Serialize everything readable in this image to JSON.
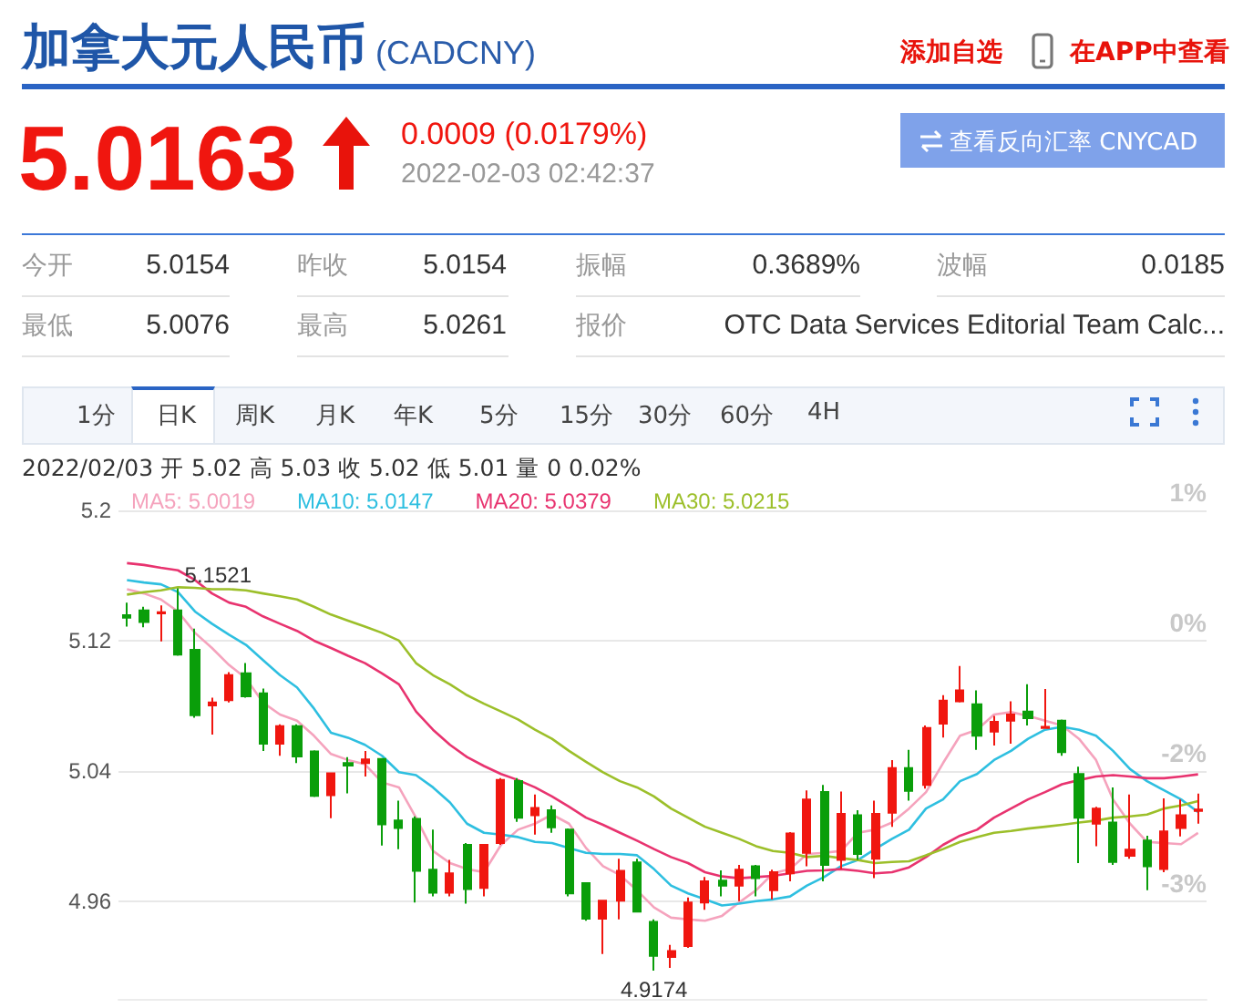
{
  "chart_data": [
    {
      "type": "other",
      "title": "加拿大元人民币",
      "subtitle": "(CADCNY)",
      "annotations": [
        "添加自选",
        "在APP中查看",
        "5.0163",
        "0.0009 (0.0179%)",
        "2022-02-03 02:42:37",
        "查看反向汇率 CNYCAD",
        "今开",
        "5.0154",
        "昨收",
        "5.0154",
        "振幅",
        "0.3689%",
        "波幅",
        "0.0185",
        "最低",
        "5.0076",
        "最高",
        "5.0261",
        "报价",
        "OTC Data Services Editorial Team Calc...",
        "1分",
        "日K",
        "周K",
        "月K",
        "年K",
        "5分",
        "15分",
        "30分",
        "60分",
        "4H",
        "2022/02/03 开 5.02 高 5.03 收 5.02 低 5.01 量 0 0.02%"
      ]
    },
    {
      "type": "candlestick",
      "categories": [
        null,
        null,
        null,
        null,
        null,
        null,
        null,
        null,
        null,
        null,
        null,
        null,
        null,
        null,
        null,
        null,
        null,
        null,
        null,
        null,
        null,
        null,
        null,
        null,
        null,
        null,
        null,
        null,
        null,
        null,
        null,
        null,
        null,
        null,
        null,
        null,
        null,
        null,
        null,
        null,
        null,
        null,
        null,
        null,
        null,
        null,
        null,
        null,
        null,
        null,
        null,
        null,
        null,
        null,
        null,
        null,
        null,
        null,
        null,
        null,
        null,
        null,
        null,
        null
      ],
      "ylim": [
        4.9,
        5.2
      ],
      "yticks": [
        4.96,
        5.04,
        5.12,
        5.2
      ],
      "grid": "y",
      "legend": "top left",
      "tick_labels": "y",
      "annotations": [
        {
          "text": "5.1521",
          "y": 5.1521
        },
        {
          "text": "4.9174",
          "y": 4.9174
        },
        "1%",
        "0%",
        "-2%",
        "-3%"
      ],
      "series": [
        {
          "type": "candlestick",
          "ohlc": [
            [
              5.1356,
              5.1434,
              5.1286,
              5.1341
            ],
            [
              5.1386,
              5.1408,
              5.1282,
              5.1315
            ],
            [
              5.1367,
              5.1416,
              5.1196,
              5.1375
            ],
            [
              5.1386,
              5.1521,
              5.1107,
              5.1114
            ],
            [
              5.1144,
              5.1274,
              5.0727,
              5.0742
            ],
            [
              5.0802,
              5.085,
              5.0623,
              5.082
            ],
            [
              5.0835,
              5.1006,
              5.082,
              5.0988
            ],
            [
              5.0999,
              5.1062,
              5.085,
              5.0858
            ],
            [
              5.0876,
              5.0906,
              5.0523,
              5.0567
            ],
            [
              5.0567,
              5.0686,
              5.0493,
              5.0675
            ],
            [
              5.0675,
              5.0686,
              5.0448,
              5.0489
            ],
            [
              5.0519,
              5.0526,
              5.024,
              5.0247
            ],
            [
              5.0251,
              5.0385,
              5.0109,
              5.0385
            ],
            [
              5.0448,
              5.0485,
              5.0262,
              5.0433
            ],
            [
              5.0448,
              5.0523,
              5.0366,
              5.0471
            ],
            [
              5.0474,
              5.0474,
              4.9942,
              5.0072
            ],
            [
              5.0095,
              5.0217,
              4.992,
              5.005
            ],
            [
              5.0106,
              5.0121,
              4.9592,
              4.9786
            ],
            [
              4.9793,
              5.0039,
              4.963,
              4.9652
            ],
            [
              4.9652,
              4.9853,
              4.963,
              4.9771
            ],
            [
              4.9946,
              4.9957,
              4.9585,
              4.9674
            ],
            [
              4.9681,
              4.9946,
              4.963,
              4.9946
            ],
            [
              4.9957,
              5.0356,
              4.9946,
              5.0344
            ],
            [
              5.0337,
              5.0356,
              5.0087,
              5.0113
            ],
            [
              5.0128,
              5.0255,
              5.0009,
              5.0173
            ],
            [
              5.0158,
              5.0188,
              5.002,
              5.0054
            ],
            [
              5.0039,
              5.0046,
              4.963,
              4.9648
            ],
            [
              4.9711,
              4.9711,
              4.948,
              4.9492
            ],
            [
              4.9492,
              4.9603,
              4.9276,
              4.9603
            ],
            [
              4.9603,
              4.986,
              4.9488,
              4.9786
            ],
            [
              4.9838,
              4.986,
              4.9536,
              4.9536
            ],
            [
              4.9473,
              4.9488,
              4.9174,
              4.9265
            ],
            [
              4.9257,
              4.9332,
              4.919,
              4.9294
            ],
            [
              4.9324,
              4.9622,
              4.9313,
              4.9592
            ],
            [
              4.9592,
              4.9748,
              4.9547,
              4.9722
            ],
            [
              4.9726,
              4.9789,
              4.963,
              4.9696
            ],
            [
              4.9696,
              4.9823,
              4.96,
              4.9793
            ],
            [
              4.9815,
              4.9823,
              4.963,
              4.9741
            ],
            [
              4.9667,
              4.9793,
              4.9611,
              4.9778
            ],
            [
              4.9771,
              5.0024,
              4.9722,
              5.0016
            ],
            [
              4.9897,
              5.0281,
              4.9815,
              5.0225
            ],
            [
              5.027,
              5.0314,
              4.9722,
              4.9823
            ],
            [
              4.9853,
              5.0273,
              4.9797,
              5.0136
            ],
            [
              5.0128,
              5.0158,
              4.9853,
              4.989
            ],
            [
              4.986,
              5.0217,
              4.9741,
              5.0136
            ],
            [
              5.0143,
              5.0467,
              5.0057,
              5.0418
            ],
            [
              5.0418,
              5.053,
              5.0217,
              5.0277
            ],
            [
              5.0314,
              5.0679,
              5.0292,
              5.0664
            ],
            [
              5.069,
              5.0865,
              5.0605,
              5.0832
            ],
            [
              5.0828,
              5.1044,
              5.082,
              5.0895
            ],
            [
              5.0809,
              5.0895,
              5.053,
              5.0616
            ],
            [
              5.0642,
              5.0738,
              5.0556,
              5.0701
            ],
            [
              5.0709,
              5.0828,
              5.0567,
              5.0746
            ],
            [
              5.0765,
              5.0932,
              5.0679,
              5.0724
            ],
            [
              5.0664,
              5.0903,
              5.0664,
              5.0671
            ],
            [
              5.0709,
              5.0716,
              5.0493,
              5.0515
            ],
            [
              5.0381,
              5.0426,
              4.9834,
              5.0113
            ],
            [
              5.0076,
              5.018,
              4.9938,
              5.0169
            ],
            [
              5.0083,
              5.0299,
              4.9823,
              4.9841
            ],
            [
              4.9879,
              5.0255,
              4.986,
              4.9916
            ],
            [
              4.9972,
              5.0002,
              4.9667,
              4.9815
            ],
            [
              4.9797,
              5.0232,
              4.9778,
              5.0028
            ],
            [
              5.005,
              5.0225,
              4.9998,
              5.0128
            ],
            [
              5.0154,
              5.0261,
              5.0076,
              5.0163
            ]
          ],
          "colors": [
            "#0a9e0a",
            "#0a9e0a",
            "#f0160f",
            "#0a9e0a",
            "#0a9e0a",
            "#f0160f",
            "#f0160f",
            "#0a9e0a",
            "#0a9e0a",
            "#f0160f",
            "#0a9e0a",
            "#0a9e0a",
            "#f0160f",
            "#0a9e0a",
            "#f0160f",
            "#0a9e0a",
            "#0a9e0a",
            "#0a9e0a",
            "#0a9e0a",
            "#f0160f",
            "#0a9e0a",
            "#f0160f",
            "#f0160f",
            "#0a9e0a",
            "#f0160f",
            "#0a9e0a",
            "#0a9e0a",
            "#0a9e0a",
            "#f0160f",
            "#f0160f",
            "#0a9e0a",
            "#0a9e0a",
            "#f0160f",
            "#f0160f",
            "#f0160f",
            "#0a9e0a",
            "#f0160f",
            "#0a9e0a",
            "#f0160f",
            "#f0160f",
            "#f0160f",
            "#0a9e0a",
            "#f0160f",
            "#0a9e0a",
            "#f0160f",
            "#f0160f",
            "#0a9e0a",
            "#f0160f",
            "#f0160f",
            "#f0160f",
            "#0a9e0a",
            "#f0160f",
            "#f0160f",
            "#0a9e0a",
            "#f0160f",
            "#0a9e0a",
            "#0a9e0a",
            "#f0160f",
            "#0a9e0a",
            "#f0160f",
            "#0a9e0a",
            "#f0160f",
            "#f0160f",
            "#f0160f"
          ]
        },
        {
          "type": "line",
          "name": "MA5: 5.0019",
          "color": "#f5a3bd",
          "values": [
            5.1516,
            5.149,
            5.1453,
            5.1379,
            5.1248,
            5.1155,
            5.1051,
            5.0969,
            5.082,
            5.0746,
            5.0709,
            5.0616,
            5.0504,
            5.0467,
            5.0441,
            5.033,
            5.0299,
            5.0113,
            4.9909,
            4.9834,
            4.9797,
            4.9778,
            4.9946,
            5.0039,
            5.0076,
            5.0132,
            5.0076,
            4.9927,
            4.9815,
            4.976,
            4.9667,
            4.9562,
            4.9499,
            4.9488,
            4.948,
            4.951,
            4.9592,
            4.9667,
            4.9771,
            4.9797,
            4.989,
            4.9897,
            4.9909,
            5.002,
            5.0039,
            5.0083,
            5.0169,
            5.027,
            5.0448,
            5.0616,
            5.0653,
            5.0746,
            5.0761,
            5.0738,
            5.0709,
            5.0679,
            5.0597,
            5.0467,
            5.0225,
            5.0076,
            4.9964,
            4.9957,
            4.995,
            5.0019
          ]
        },
        {
          "type": "line",
          "name": "MA10: 5.0147",
          "color": "#2ebfe0",
          "values": [
            5.1572,
            5.1557,
            5.1546,
            5.1498,
            5.1379,
            5.1304,
            5.1237,
            5.1174,
            5.1081,
            5.0988,
            5.0913,
            5.0783,
            5.0634,
            5.0604,
            5.056,
            5.0493,
            5.0392,
            5.0374,
            5.0299,
            5.0206,
            5.0076,
            5.002,
            5.0009,
            4.9994,
            4.9964,
            4.9957,
            4.9927,
            4.9897,
            4.989,
            4.989,
            4.9882,
            4.9797,
            4.9696,
            4.9648,
            4.9611,
            4.9574,
            4.9585,
            4.96,
            4.9611,
            4.9629,
            4.9696,
            4.9748,
            4.9815,
            4.9853,
            4.992,
            4.9983,
            5.0039,
            5.0169,
            5.0225,
            5.0337,
            5.0381,
            5.0467,
            5.0523,
            5.0597,
            5.0653,
            5.0671,
            5.0653,
            5.0616,
            5.0523,
            5.0411,
            5.0337,
            5.0281,
            5.0225,
            5.0147
          ]
        },
        {
          "type": "line",
          "name": "MA20: 5.0379",
          "color": "#e8336f",
          "values": [
            5.1676,
            5.1665,
            5.1647,
            5.1632,
            5.1572,
            5.149,
            5.1434,
            5.1408,
            5.1349,
            5.1304,
            5.126,
            5.12,
            5.1155,
            5.1107,
            5.1062,
            5.0999,
            5.0932,
            5.0765,
            5.0653,
            5.056,
            5.0485,
            5.043,
            5.0381,
            5.0344,
            5.0299,
            5.0243,
            5.018,
            5.0113,
            5.0069,
            5.002,
            4.9972,
            4.992,
            4.9871,
            4.9834,
            4.9778,
            4.9752,
            4.9741,
            4.9748,
            4.9756,
            4.9771,
            4.9786,
            4.9789,
            4.9797,
            4.9786,
            4.9771,
            4.9778,
            4.9808,
            4.9871,
            4.9946,
            5.0002,
            5.0039,
            5.0113,
            5.0169,
            5.0225,
            5.027,
            5.0318,
            5.0344,
            5.0366,
            5.0374,
            5.0366,
            5.0355,
            5.0355,
            5.0366,
            5.0379
          ]
        },
        {
          "type": "line",
          "name": "MA30: 5.0215",
          "color": "#9cbf2a",
          "values": [
            5.1483,
            5.1498,
            5.1509,
            5.1528,
            5.1524,
            5.1516,
            5.1516,
            5.1509,
            5.149,
            5.1472,
            5.1453,
            5.1408,
            5.136,
            5.1323,
            5.1286,
            5.1248,
            5.12,
            5.1062,
            5.0988,
            5.0932,
            5.0865,
            5.0813,
            5.0765,
            5.0716,
            5.0653,
            5.0597,
            5.0523,
            5.0456,
            5.0392,
            5.0337,
            5.0299,
            5.0243,
            5.0169,
            5.0113,
            5.0057,
            5.002,
            4.9983,
            4.9938,
            4.9908,
            4.9897,
            4.9871,
            4.9879,
            4.9864,
            4.9853,
            4.9834,
            4.9841,
            4.9845,
            4.9882,
            4.992,
            4.9964,
            4.9994,
            5.002,
            5.0031,
            5.0046,
            5.0057,
            5.0069,
            5.0083,
            5.0095,
            5.0113,
            5.0121,
            5.0132,
            5.0169,
            5.0188,
            5.0215
          ]
        }
      ]
    }
  ]
}
